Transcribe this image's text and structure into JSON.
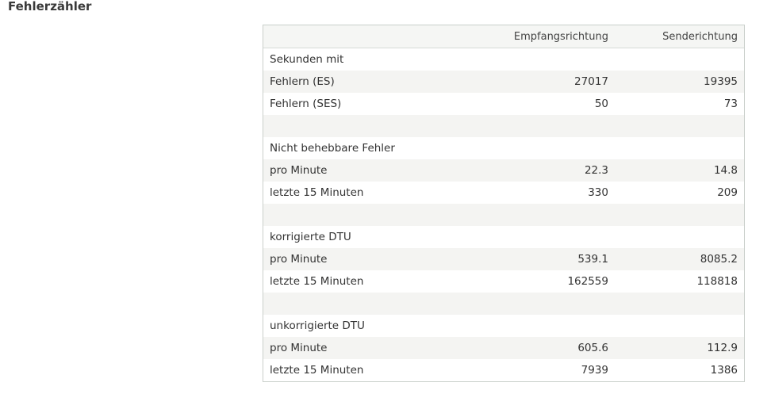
{
  "page": {
    "title": "Fehlerzähler"
  },
  "table": {
    "columns": [
      "",
      "Empfangsrichtung",
      "Senderichtung"
    ],
    "rows": [
      {
        "label": "Sekunden mit",
        "rx": "",
        "tx": ""
      },
      {
        "label": "Fehlern (ES)",
        "rx": "27017",
        "tx": "19395"
      },
      {
        "label": "Fehlern (SES)",
        "rx": "50",
        "tx": "73"
      },
      {
        "label": "",
        "rx": "",
        "tx": ""
      },
      {
        "label": "Nicht behebbare Fehler",
        "rx": "",
        "tx": ""
      },
      {
        "label": "pro Minute",
        "rx": "22.3",
        "tx": "14.8"
      },
      {
        "label": "letzte 15 Minuten",
        "rx": "330",
        "tx": "209"
      },
      {
        "label": "",
        "rx": "",
        "tx": ""
      },
      {
        "label": "korrigierte DTU",
        "rx": "",
        "tx": ""
      },
      {
        "label": "pro Minute",
        "rx": "539.1",
        "tx": "8085.2"
      },
      {
        "label": "letzte 15 Minuten",
        "rx": "162559",
        "tx": "118818"
      },
      {
        "label": "",
        "rx": "",
        "tx": ""
      },
      {
        "label": "unkorrigierte DTU",
        "rx": "",
        "tx": ""
      },
      {
        "label": "pro Minute",
        "rx": "605.6",
        "tx": "112.9"
      },
      {
        "label": "letzte 15 Minuten",
        "rx": "7939",
        "tx": "1386"
      }
    ]
  }
}
